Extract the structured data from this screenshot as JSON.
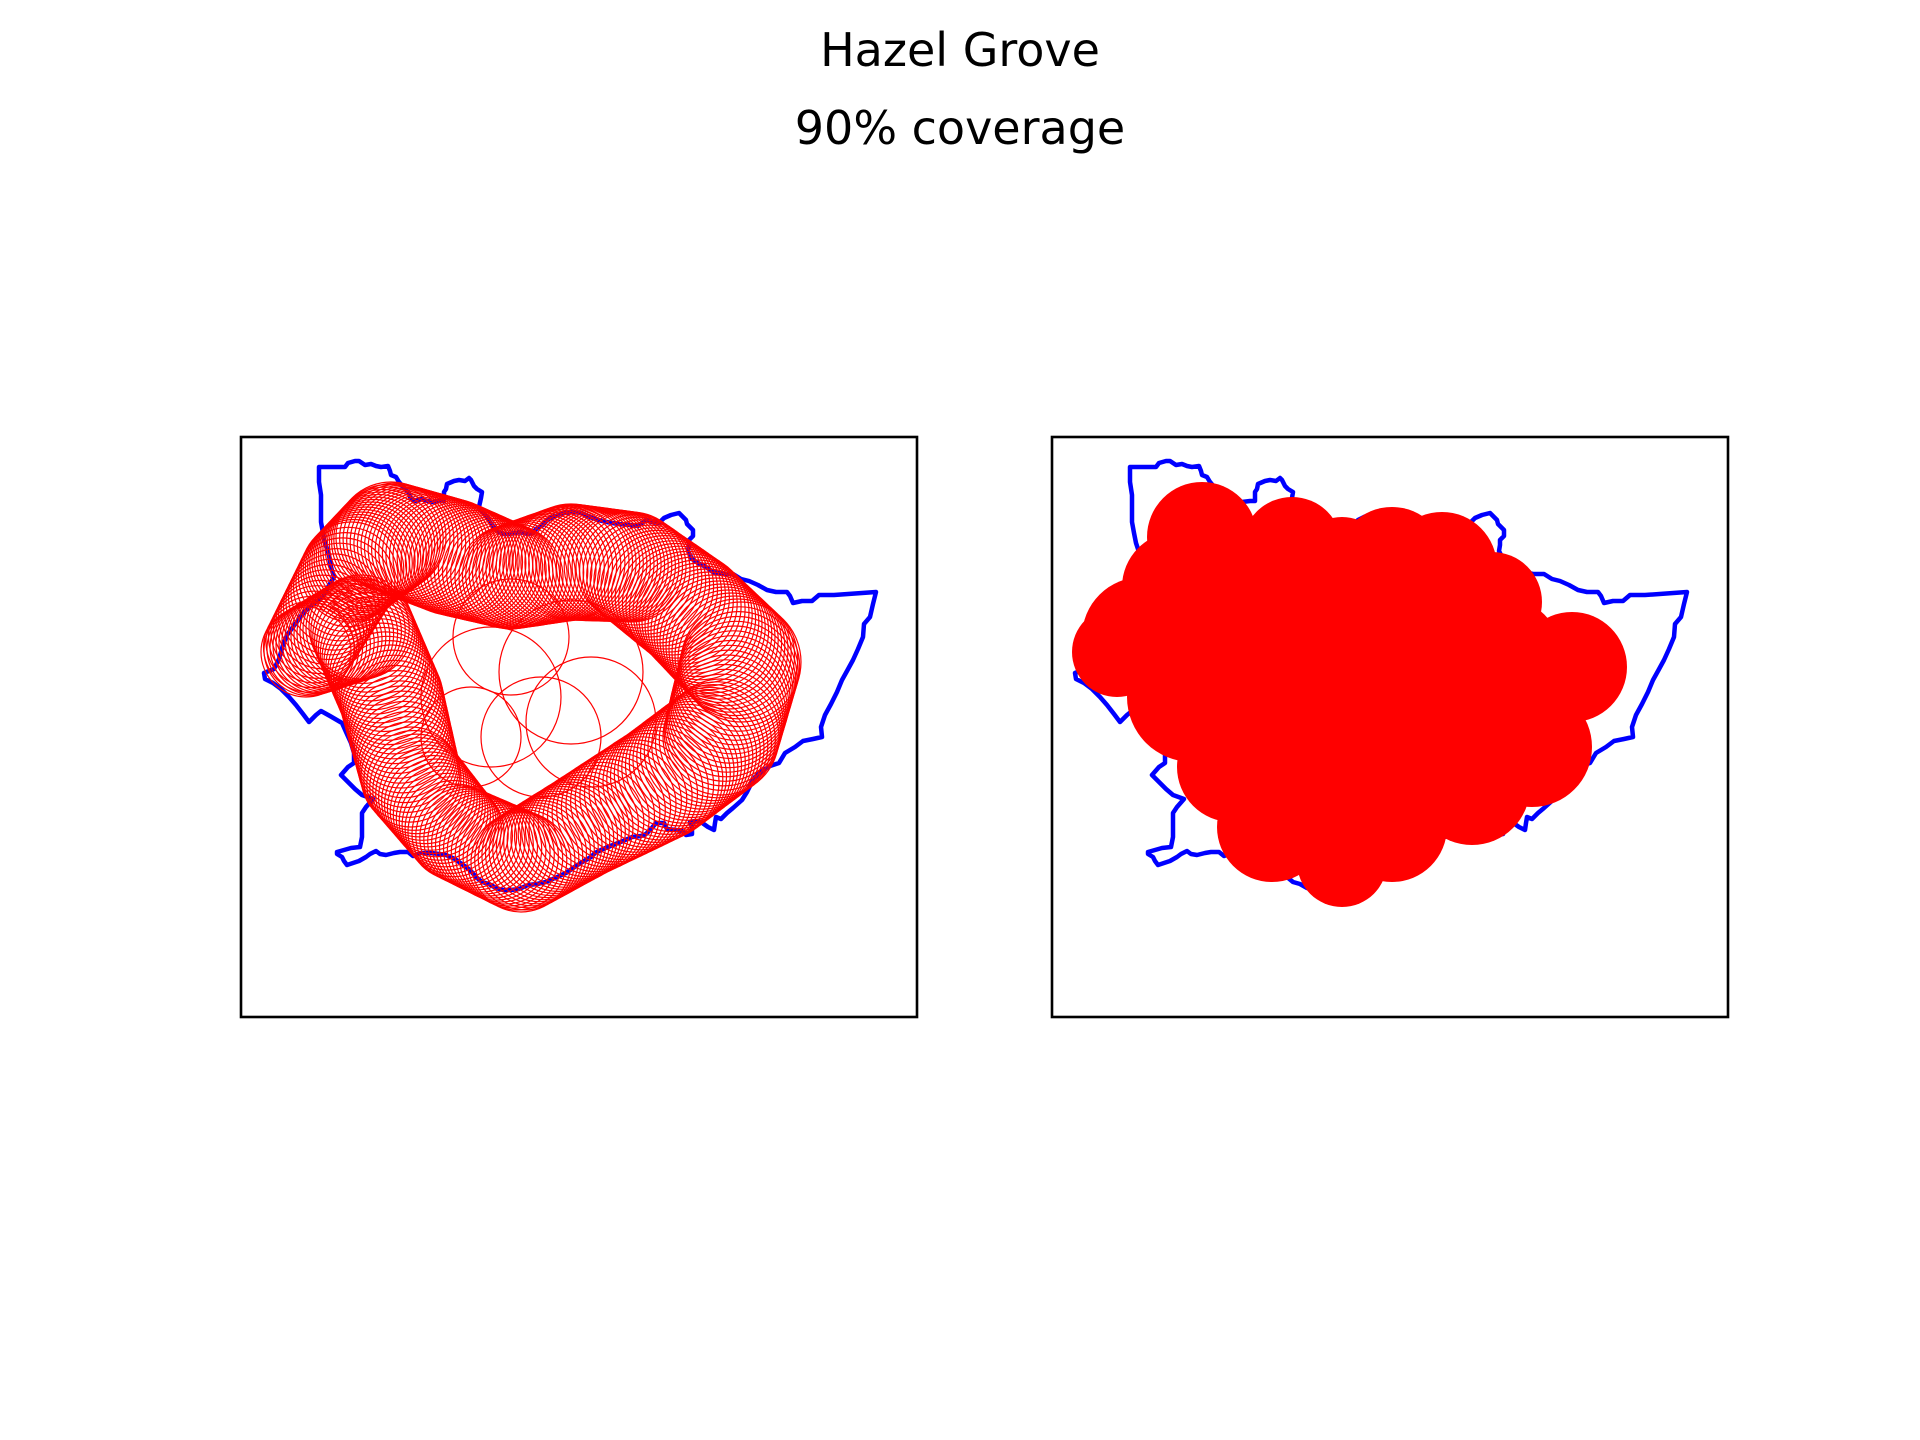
{
  "figure": {
    "title": "Hazel Grove",
    "subtitle": "90% coverage",
    "background_color": "#ffffff"
  },
  "colors": {
    "boundary": "#0000ff",
    "circles": "#ff0000",
    "frame": "#000000"
  },
  "panels": [
    {
      "name": "left-panel",
      "content": "boundary outline with unfilled coverage circle outlines"
    },
    {
      "name": "right-panel",
      "content": "boundary outline with filled coverage circles"
    }
  ]
}
